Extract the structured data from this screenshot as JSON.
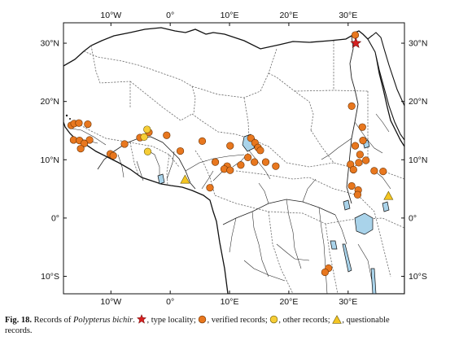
{
  "map": {
    "title": "",
    "lon_labels_top": [
      "10°W",
      "0°",
      "10°E",
      "20°E",
      "30°E"
    ],
    "lon_labels_bottom": [
      "10°W",
      "0°",
      "10°E",
      "20°E",
      "30°E"
    ],
    "lat_labels_left": [
      "30°N",
      "20°N",
      "10°N",
      "0°",
      "10°S"
    ],
    "lat_labels_right": [
      "30°N",
      "20°N",
      "10°N",
      "0°",
      "10°S"
    ],
    "lon_values": [
      -10,
      0,
      10,
      20,
      30
    ],
    "lat_values": [
      30,
      20,
      10,
      0,
      -10
    ],
    "extent": {
      "lon": [
        -18,
        39.5
      ],
      "lat": [
        -13,
        33.5
      ]
    },
    "colors": {
      "land": "#ffffff",
      "sea": "#ffffff",
      "coast": "#111111",
      "border": "#6b6b6b",
      "river": "#222222",
      "lake": "#a9d3ea",
      "verified": "#e8771e",
      "other": "#f6cd36",
      "questionable": "#f4c522",
      "type_locality": "#d62020"
    },
    "legend_symbols": [
      "red-star",
      "orange-circle",
      "yellow-circle",
      "yellow-triangle"
    ],
    "records": {
      "type_locality": [
        [
          31.3,
          30.0
        ]
      ],
      "verified": [
        [
          -16.7,
          15.9
        ],
        [
          -16.2,
          16.2
        ],
        [
          -15.4,
          16.3
        ],
        [
          -13.9,
          16.1
        ],
        [
          -16.3,
          13.4
        ],
        [
          -15.3,
          13.3
        ],
        [
          -13.6,
          13.4
        ],
        [
          -14.5,
          12.8
        ],
        [
          -15.1,
          11.9
        ],
        [
          -10.1,
          11.0
        ],
        [
          -9.6,
          10.7
        ],
        [
          -7.7,
          12.7
        ],
        [
          -5.1,
          13.8
        ],
        [
          -3.6,
          14.7
        ],
        [
          -0.6,
          14.2
        ],
        [
          1.7,
          11.5
        ],
        [
          5.4,
          13.2
        ],
        [
          10.1,
          12.4
        ],
        [
          13.6,
          13.7
        ],
        [
          14.3,
          12.9
        ],
        [
          14.8,
          12.1
        ],
        [
          15.2,
          11.6
        ],
        [
          13.1,
          10.4
        ],
        [
          14.2,
          9.6
        ],
        [
          16.1,
          9.6
        ],
        [
          17.8,
          8.9
        ],
        [
          9.6,
          8.9
        ],
        [
          9.1,
          8.4
        ],
        [
          7.6,
          9.6
        ],
        [
          10.1,
          8.2
        ],
        [
          11.9,
          9.1
        ],
        [
          6.7,
          5.2
        ],
        [
          30.6,
          19.2
        ],
        [
          32.4,
          15.6
        ],
        [
          32.5,
          13.3
        ],
        [
          31.2,
          12.4
        ],
        [
          32.0,
          10.9
        ],
        [
          33.0,
          9.9
        ],
        [
          31.8,
          9.5
        ],
        [
          30.4,
          9.2
        ],
        [
          30.9,
          8.3
        ],
        [
          34.4,
          8.1
        ],
        [
          35.9,
          8.0
        ],
        [
          30.6,
          5.5
        ],
        [
          31.7,
          4.8
        ],
        [
          31.6,
          4.0
        ],
        [
          31.2,
          31.4
        ],
        [
          26.7,
          -8.6
        ],
        [
          26.1,
          -9.3
        ]
      ],
      "other": [
        [
          -4.4,
          13.9
        ],
        [
          -3.9,
          15.2
        ],
        [
          -3.8,
          11.4
        ]
      ],
      "questionable": [
        [
          2.5,
          6.6
        ],
        [
          36.8,
          3.8
        ]
      ]
    }
  },
  "caption": {
    "figure_label": "Fig. 18.",
    "text_before_species": "Records of",
    "species": "Polypterus bichir",
    "seg_type": ". ",
    "seg_type_label": ", type locality;",
    "seg_verified_label": ", verified records;",
    "seg_other_label": ", other records;",
    "seg_questionable_label": ", questionable",
    "line2": "records."
  }
}
